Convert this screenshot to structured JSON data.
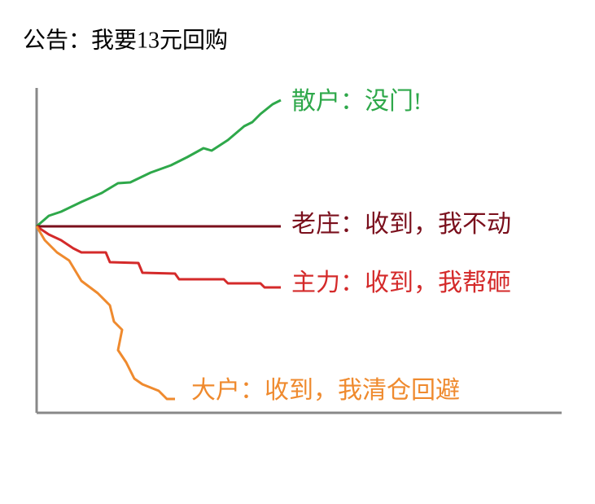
{
  "chart_data": {
    "type": "line",
    "title": "公告：我要13元回购",
    "xlim": [
      0,
      645
    ],
    "ylim": [
      -229,
      170
    ],
    "series": [
      {
        "name": "散户：没门!",
        "color": "#2ea84a",
        "x": [
          0,
          15,
          30,
          55,
          80,
          100,
          115,
          140,
          165,
          185,
          205,
          215,
          235,
          255,
          265,
          275,
          290,
          300
        ],
        "values": [
          0,
          13,
          18,
          30,
          41,
          53,
          54,
          66,
          75,
          85,
          96,
          93,
          106,
          123,
          128,
          138,
          150,
          155
        ]
      },
      {
        "name": "老庄：收到，我不动",
        "color": "#7a0f1c",
        "x": [
          0,
          300
        ],
        "values": [
          0,
          0
        ]
      },
      {
        "name": "主力：收到，我帮砸",
        "color": "#d42a2a",
        "x": [
          0,
          15,
          30,
          45,
          55,
          85,
          90,
          125,
          130,
          170,
          175,
          230,
          235,
          275,
          280,
          300
        ],
        "values": [
          0,
          -10,
          -17,
          -27,
          -32,
          -32,
          -44,
          -45,
          -57,
          -58,
          -65,
          -65,
          -70,
          -70,
          -75,
          -75
        ]
      },
      {
        "name": "大户：收到，我清仓回避",
        "color": "#ef8a2e",
        "x": [
          0,
          10,
          25,
          40,
          55,
          75,
          90,
          95,
          105,
          100,
          110,
          120,
          130,
          150,
          160,
          170
        ],
        "values": [
          0,
          -17,
          -32,
          -42,
          -67,
          -82,
          -97,
          -117,
          -127,
          -152,
          -167,
          -187,
          -194,
          -202,
          -212,
          -212
        ]
      }
    ]
  }
}
